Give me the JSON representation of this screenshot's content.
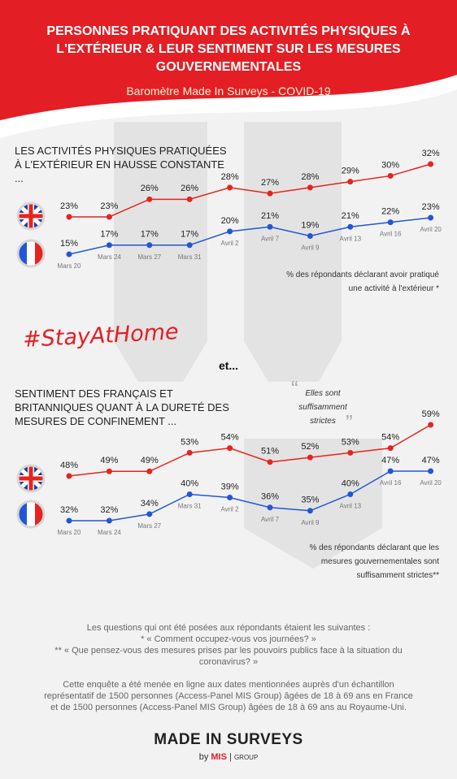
{
  "header": {
    "title": "PERSONNES PRATIQUANT DES ACTIVITÉS PHYSIQUES À L'EXTÉRIEUR & LEUR SENTIMENT SUR LES MESURES GOUVERNEMENTALES",
    "subtitle": "Baromètre Made In Surveys - COVID-19"
  },
  "chart_data": [
    {
      "type": "line",
      "title": "LES ACTIVITÉS PHYSIQUES PRATIQUÉES À L'EXTÉRIEUR EN HAUSSE CONSTANTE ...",
      "note": "% des répondants déclarant avoir pratiqué une activité à l'extérieur *",
      "categories": [
        "Mars 20",
        "Mars 24",
        "Mars 27",
        "Mars 31",
        "Avril 2",
        "Avril 7",
        "Avril 9",
        "Avril 13",
        "Avril 16",
        "Avril 20"
      ],
      "series": [
        {
          "color": "#e8231f",
          "values": [
            23,
            23,
            26,
            26,
            28,
            27,
            28,
            29,
            30,
            32
          ],
          "value_labels": [
            "23%",
            "23%",
            "26%",
            "26%",
            "28%",
            "27%",
            "28%",
            "29%",
            "30%",
            "32%"
          ]
        },
        {
          "color": "#2356d6",
          "values": [
            15,
            17,
            17,
            17,
            20,
            21,
            19,
            21,
            22,
            23
          ],
          "value_labels": [
            "15%",
            "17%",
            "17%",
            "17%",
            "20%",
            "21%",
            "19%",
            "21%",
            "22%",
            "23%"
          ]
        }
      ]
    },
    {
      "type": "line",
      "title": "SENTIMENT DES FRANÇAIS ET BRITANNIQUES QUANT À LA DURETÉ DES MESURES DE CONFINEMENT ...",
      "note": "% des répondants déclarant que les mesures gouvernementales sont suffisamment strictes**",
      "categories": [
        "Mars 20",
        "Mars 24",
        "Mars 27",
        "Mars 31",
        "Avril 2",
        "Avril 7",
        "Avril 9",
        "Avril 13",
        "Avril 16",
        "Avril 20"
      ],
      "series": [
        {
          "color": "#e8231f",
          "values": [
            48,
            49,
            49,
            53,
            54,
            51,
            52,
            53,
            54,
            59
          ],
          "value_labels": [
            "48%",
            "49%",
            "49%",
            "53%",
            "54%",
            "51%",
            "52%",
            "53%",
            "54%",
            "59%"
          ]
        },
        {
          "color": "#2356d6",
          "values": [
            32,
            32,
            34,
            40,
            39,
            36,
            35,
            40,
            47,
            47
          ],
          "value_labels": [
            "32%",
            "32%",
            "34%",
            "40%",
            "39%",
            "36%",
            "35%",
            "40%",
            "47%",
            "47%"
          ]
        }
      ]
    }
  ],
  "hashtag": "#StayAtHome",
  "connector": "et...",
  "quote": "Elles sont suffisamment strictes",
  "footer": {
    "intro": "Les questions qui ont été posées aux répondants étaient les suivantes :",
    "question_1": "* « Comment occupez-vous vos journées? »",
    "question_2": "** « Que pensez-vous des mesures prises par les pouvoirs publics face à la situation du coronavirus? »",
    "method": "Cette enquête a été menée en ligne aux dates mentionnées auprès d'un échantillon représentatif de 1500 personnes (Access-Panel MIS Group) âgées de 18 à 69 ans en France et de 1500 personnes (Access-Panel MIS Group) âgées de 18 à 69 ans au Royaume-Uni."
  },
  "logo": {
    "name": "MADE IN SURVEYS",
    "by": "by",
    "brand": "MIS",
    "group": "GROUP"
  }
}
